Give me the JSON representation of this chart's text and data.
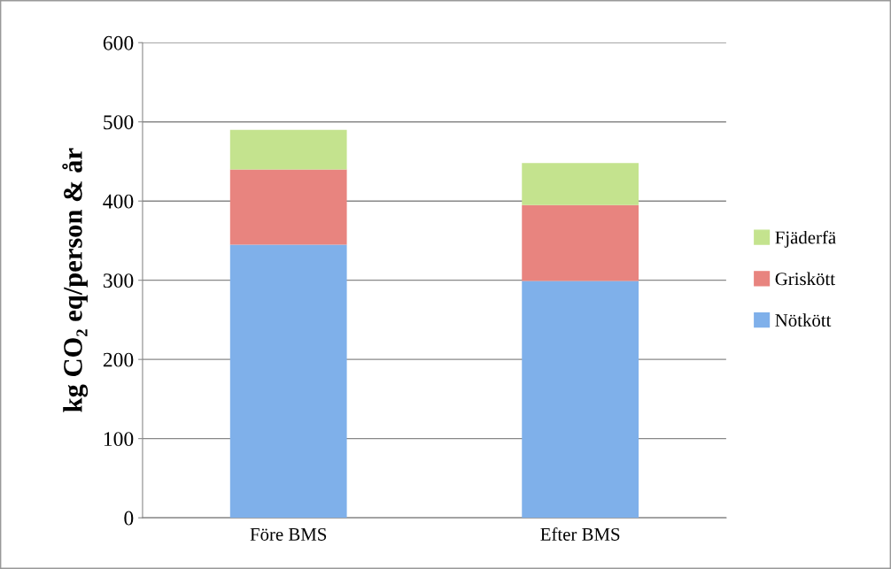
{
  "chart_data": {
    "type": "bar",
    "stacked": true,
    "ylabel": "kg CO₂ eq/person & år",
    "categories": [
      "Före BMS",
      "Efter BMS"
    ],
    "series": [
      {
        "name": "Nötkött",
        "color": "#7fb0ea",
        "values": [
          345,
          299
        ]
      },
      {
        "name": "Griskött",
        "color": "#e8847f",
        "values": [
          95,
          96
        ]
      },
      {
        "name": "Fjäderfä",
        "color": "#c4e38e",
        "values": [
          50,
          53
        ]
      }
    ],
    "ylim": [
      0,
      600
    ],
    "yticks": [
      0,
      100,
      200,
      300,
      400,
      500,
      600
    ],
    "grid": "y",
    "legend": "right"
  }
}
